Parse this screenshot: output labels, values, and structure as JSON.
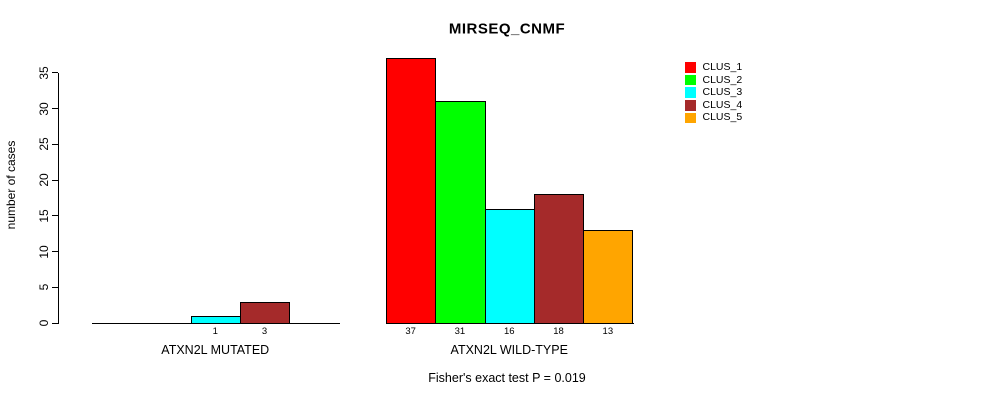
{
  "chart_data": {
    "type": "bar",
    "title": "MIRSEQ_CNMF",
    "ylabel": "number of cases",
    "yticks": [
      0,
      5,
      10,
      15,
      20,
      25,
      30,
      35
    ],
    "ylim": [
      0,
      37
    ],
    "grid": false,
    "legend_position": "right",
    "series": [
      {
        "name": "CLUS_1",
        "color": "#ff0000"
      },
      {
        "name": "CLUS_2",
        "color": "#00ff00"
      },
      {
        "name": "CLUS_3",
        "color": "#00ffff"
      },
      {
        "name": "CLUS_4",
        "color": "#a52a2a"
      },
      {
        "name": "CLUS_5",
        "color": "#ffa500"
      }
    ],
    "groups": [
      {
        "label": "ATXN2L MUTATED",
        "values": [
          0,
          0,
          1,
          3,
          0
        ],
        "bar_labels": [
          "",
          "",
          "1",
          "3",
          ""
        ]
      },
      {
        "label": "ATXN2L WILD-TYPE",
        "values": [
          37,
          31,
          16,
          18,
          13
        ],
        "bar_labels": [
          "37",
          "31",
          "16",
          "18",
          "13"
        ]
      }
    ],
    "annotation": "Fisher's exact test P = 0.019"
  }
}
